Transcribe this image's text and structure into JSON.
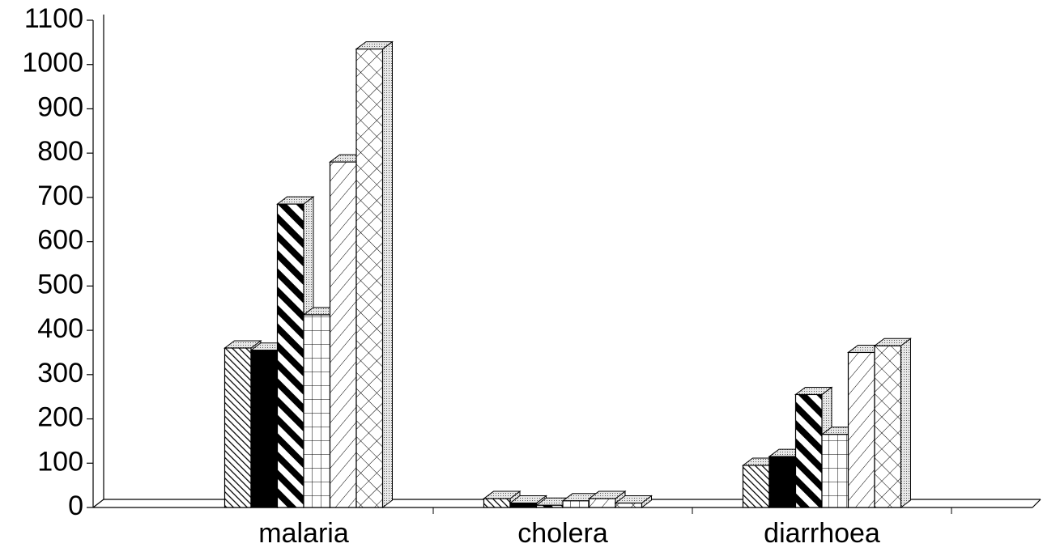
{
  "chart_data": {
    "type": "bar3d",
    "categories": [
      "malaria",
      "cholera",
      "diarrhoea"
    ],
    "series": [
      {
        "color": "#000000",
        "pattern": "dense-hatch",
        "values": [
          360,
          20,
          95
        ]
      },
      {
        "color": "#000000",
        "pattern": "solid",
        "values": [
          355,
          10,
          115
        ]
      },
      {
        "color": "#000000",
        "pattern": "wide-stripes",
        "values": [
          685,
          5,
          255
        ]
      },
      {
        "color": "#000000",
        "pattern": "grid",
        "values": [
          435,
          15,
          165
        ]
      },
      {
        "color": "#000000",
        "pattern": "forward-hatch",
        "values": [
          780,
          20,
          350
        ]
      },
      {
        "color": "#000000",
        "pattern": "crosshatch",
        "values": [
          1035,
          10,
          365
        ]
      }
    ],
    "ylim": [
      0,
      1100
    ],
    "yticks": [
      0,
      100,
      200,
      300,
      400,
      500,
      600,
      700,
      800,
      900,
      1000,
      1100
    ]
  }
}
